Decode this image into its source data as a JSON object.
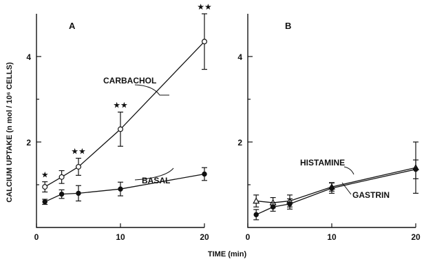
{
  "chart_data": {
    "type": "line",
    "ylabel": "CALCIUM UPTAKE (n mol / 10⁶ CELLS)",
    "xlabel": "TIME (min)",
    "panels": [
      {
        "label": "A",
        "xlim": [
          0,
          20
        ],
        "ylim": [
          0,
          5
        ],
        "xticks": [
          "0",
          "10",
          "20"
        ],
        "yticks": [
          "2",
          "4"
        ],
        "series": [
          {
            "name": "CARBACHOL",
            "marker": "open-circle",
            "x": [
              1,
              3,
              5,
              10,
              20
            ],
            "y": [
              0.95,
              1.18,
              1.42,
              2.3,
              4.35
            ],
            "err": [
              0.12,
              0.15,
              0.2,
              0.4,
              0.65
            ],
            "stars": [
              "★",
              "",
              "★★",
              "★★",
              "★★"
            ]
          },
          {
            "name": "BASAL",
            "marker": "filled-circle",
            "x": [
              1,
              3,
              5,
              10,
              20
            ],
            "y": [
              0.6,
              0.78,
              0.8,
              0.9,
              1.25
            ],
            "err": [
              0.06,
              0.1,
              0.18,
              0.16,
              0.15
            ]
          }
        ]
      },
      {
        "label": "B",
        "xlim": [
          0,
          20
        ],
        "ylim": [
          0,
          5
        ],
        "xticks": [
          "0",
          "10",
          "20"
        ],
        "yticks": [
          "2",
          "4"
        ],
        "series": [
          {
            "name": "HISTAMINE",
            "marker": "open-triangle",
            "x": [
              1,
              3,
              5,
              10,
              20
            ],
            "y": [
              0.62,
              0.58,
              0.62,
              0.95,
              1.4
            ],
            "err": [
              0.14,
              0.12,
              0.14,
              0.1,
              0.6
            ]
          },
          {
            "name": "GASTRIN",
            "marker": "filled-circle",
            "x": [
              1,
              3,
              5,
              10,
              20
            ],
            "y": [
              0.3,
              0.48,
              0.55,
              0.92,
              1.36
            ],
            "err": [
              0.12,
              0.1,
              0.12,
              0.12,
              0.22
            ]
          }
        ]
      }
    ]
  }
}
